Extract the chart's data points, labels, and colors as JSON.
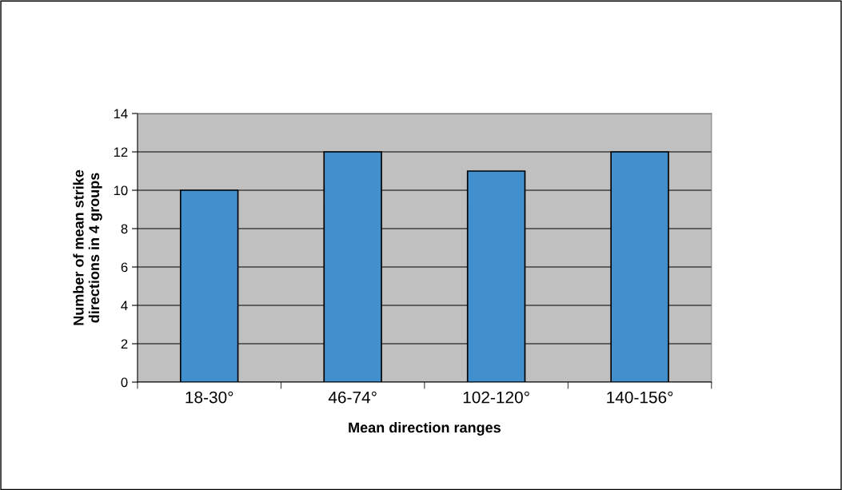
{
  "chart_data": {
    "type": "bar",
    "xlabel": "Mean direction ranges",
    "ylabel": "Number of mean strike\ndirections in 4 groups",
    "categories": [
      "18-30°",
      "46-74°",
      "102-120°",
      "140-156°"
    ],
    "values": [
      10,
      12,
      11,
      12
    ],
    "color": "#428fcd",
    "ylim": [
      0,
      14
    ],
    "yticks": [
      0,
      2,
      4,
      6,
      8,
      10,
      12,
      14
    ],
    "grid": "y"
  }
}
